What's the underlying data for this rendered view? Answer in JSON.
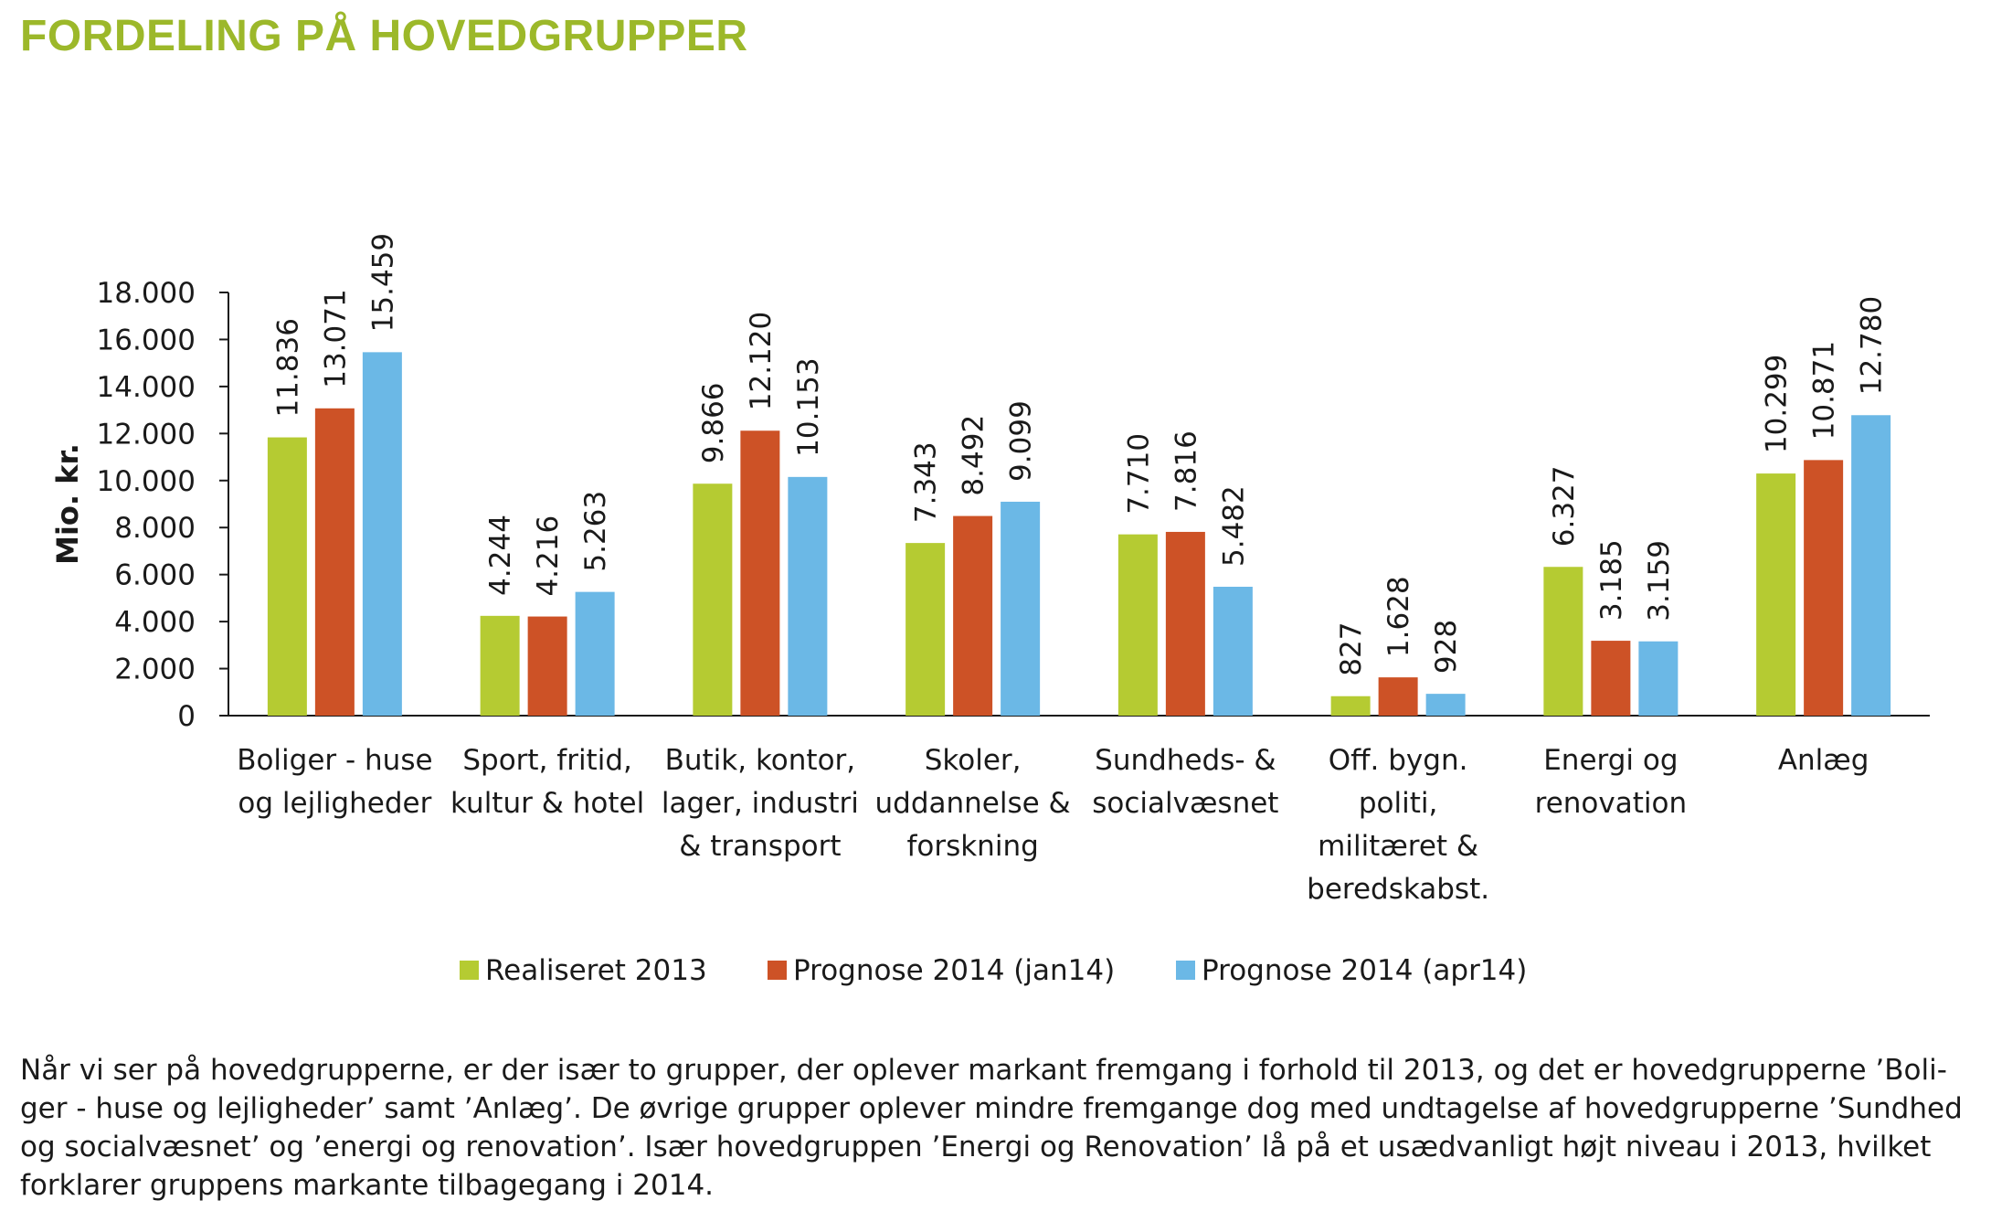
{
  "title": "FORDELING PÅ HOVEDGRUPPER",
  "chart_data": {
    "type": "bar",
    "ylabel": "Mio. kr.",
    "ylim": [
      0,
      18000
    ],
    "yticks": [
      "0",
      "2.000",
      "4.000",
      "6.000",
      "8.000",
      "10.000",
      "12.000",
      "14.000",
      "16.000",
      "18.000"
    ],
    "grid": false,
    "legend_position": "bottom",
    "categories": [
      [
        "Boliger - huse",
        "og lejligheder"
      ],
      [
        "Sport, fritid,",
        "kultur & hotel"
      ],
      [
        "Butik, kontor,",
        "lager, industri",
        "& transport"
      ],
      [
        "Skoler,",
        "uddannelse &",
        "forskning"
      ],
      [
        "Sundheds- &",
        "socialvæsnet"
      ],
      [
        "Off. bygn.",
        "politi,",
        "militæret &",
        "beredskabst."
      ],
      [
        "Energi og",
        "renovation"
      ],
      [
        "Anlæg"
      ]
    ],
    "series": [
      {
        "name": "Realiseret 2013",
        "color": "#b5cb32",
        "values": [
          11836,
          4244,
          9866,
          7343,
          7710,
          827,
          6327,
          10299
        ],
        "labels": [
          "11.836",
          "4.244",
          "9.866",
          "7.343",
          "7.710",
          "827",
          "6.327",
          "10.299"
        ]
      },
      {
        "name": "Prognose 2014 (jan14)",
        "color": "#cd5226",
        "values": [
          13071,
          4216,
          12120,
          8492,
          7816,
          1628,
          3185,
          10871
        ],
        "labels": [
          "13.071",
          "4.216",
          "12.120",
          "8.492",
          "7.816",
          "1.628",
          "3.185",
          "10.871"
        ]
      },
      {
        "name": "Prognose 2014 (apr14)",
        "color": "#6bb8e6",
        "values": [
          15459,
          5263,
          10153,
          9099,
          5482,
          928,
          3159,
          12780
        ],
        "labels": [
          "15.459",
          "5.263",
          "10.153",
          "9.099",
          "5.482",
          "928",
          "3.159",
          "12.780"
        ]
      }
    ]
  },
  "caption": [
    "Når vi ser på hovedgrupperne, er der især to grupper, der oplever markant fremgang i forhold til 2013, og det er hovedgrupperne ’Boli-",
    "ger - huse og lejligheder’ samt ’Anlæg’. De øvrige grupper oplever mindre fremgange dog med undtagelse af hovedgrupperne ’Sundhed",
    "og socialvæsnet’ og ’energi og renovation’. Især hovedgruppen ’Energi og Renovation’ lå på et usædvanligt højt niveau i 2013, hvilket",
    "forklarer gruppens markante tilbagegang i 2014."
  ]
}
